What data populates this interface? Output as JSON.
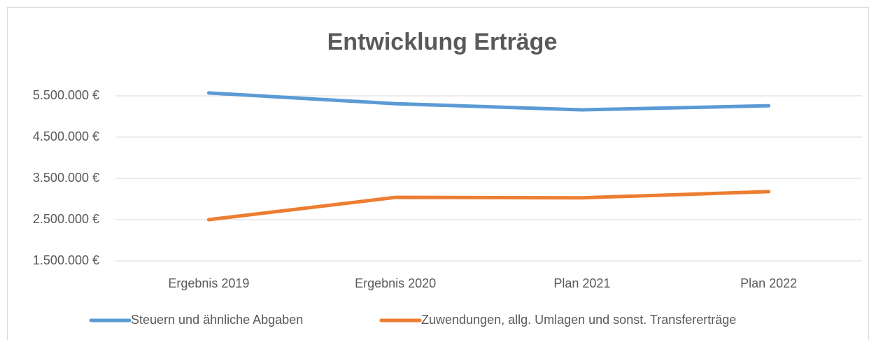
{
  "chart_data": {
    "type": "line",
    "title": "Entwicklung Erträge",
    "categories": [
      "Ergebnis 2019",
      "Ergebnis  2020",
      "Plan 2021",
      "Plan 2022"
    ],
    "series": [
      {
        "name": "Steuern und ähnliche Abgaben",
        "color": "#5b9bd5",
        "values": [
          5570000,
          5310000,
          5160000,
          5260000
        ]
      },
      {
        "name": "Zuwendungen, allg. Umlagen und sonst. Transfererträge",
        "color": "#ed7d31",
        "values": [
          2500000,
          3040000,
          3030000,
          3180000
        ]
      }
    ],
    "ylim": [
      1500000,
      5500000
    ],
    "yticks": [
      {
        "value": 1500000,
        "label": "1.500.000 €"
      },
      {
        "value": 2500000,
        "label": "2.500.000 €"
      },
      {
        "value": 3500000,
        "label": "3.500.000 €"
      },
      {
        "value": 4500000,
        "label": "4.500.000 €"
      },
      {
        "value": 5500000,
        "label": "5.500.000 €"
      }
    ],
    "grid": true,
    "legend": "bottom"
  }
}
